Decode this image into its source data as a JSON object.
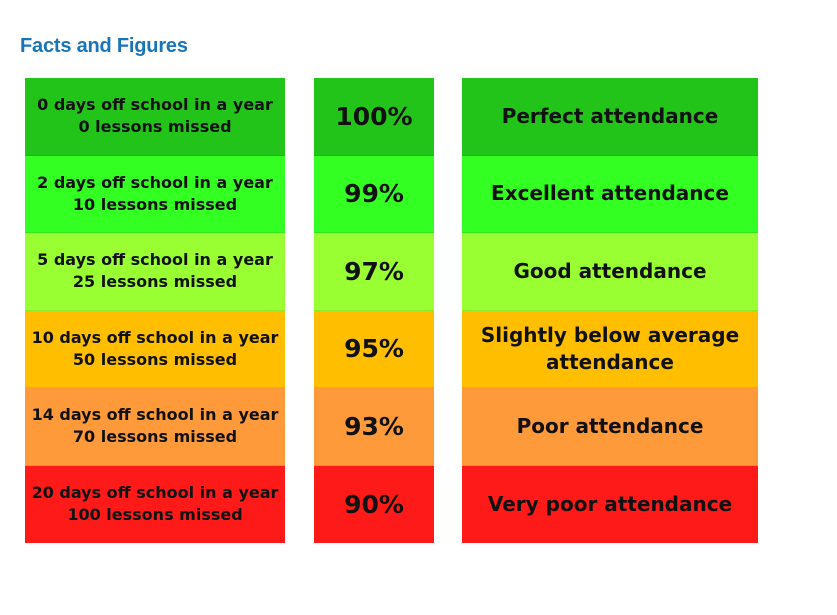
{
  "title": "Facts and Figures",
  "rows": [
    {
      "days": "0 days off school in a year",
      "lessons": "0 lessons missed",
      "percent": "100%",
      "rating": "Perfect attendance",
      "color": "#22c41a"
    },
    {
      "days": "2 days off school in a year",
      "lessons": "10 lessons missed",
      "percent": "99%",
      "rating": "Excellent attendance",
      "color": "#33ff22"
    },
    {
      "days": "5 days off school in a year",
      "lessons": "25 lessons missed",
      "percent": "97%",
      "rating": "Good attendance",
      "color": "#99ff33"
    },
    {
      "days": "10 days off school in a year",
      "lessons": "50 lessons missed",
      "percent": "95%",
      "rating": "Slightly below average attendance",
      "color": "#ffbf00"
    },
    {
      "days": "14 days off school in a year",
      "lessons": "70 lessons missed",
      "percent": "93%",
      "rating": "Poor attendance",
      "color": "#ff9a3a"
    },
    {
      "days": "20 days off school in a year",
      "lessons": "100 lessons missed",
      "percent": "90%",
      "rating": "Very poor attendance",
      "color": "#ff1a1a"
    }
  ]
}
